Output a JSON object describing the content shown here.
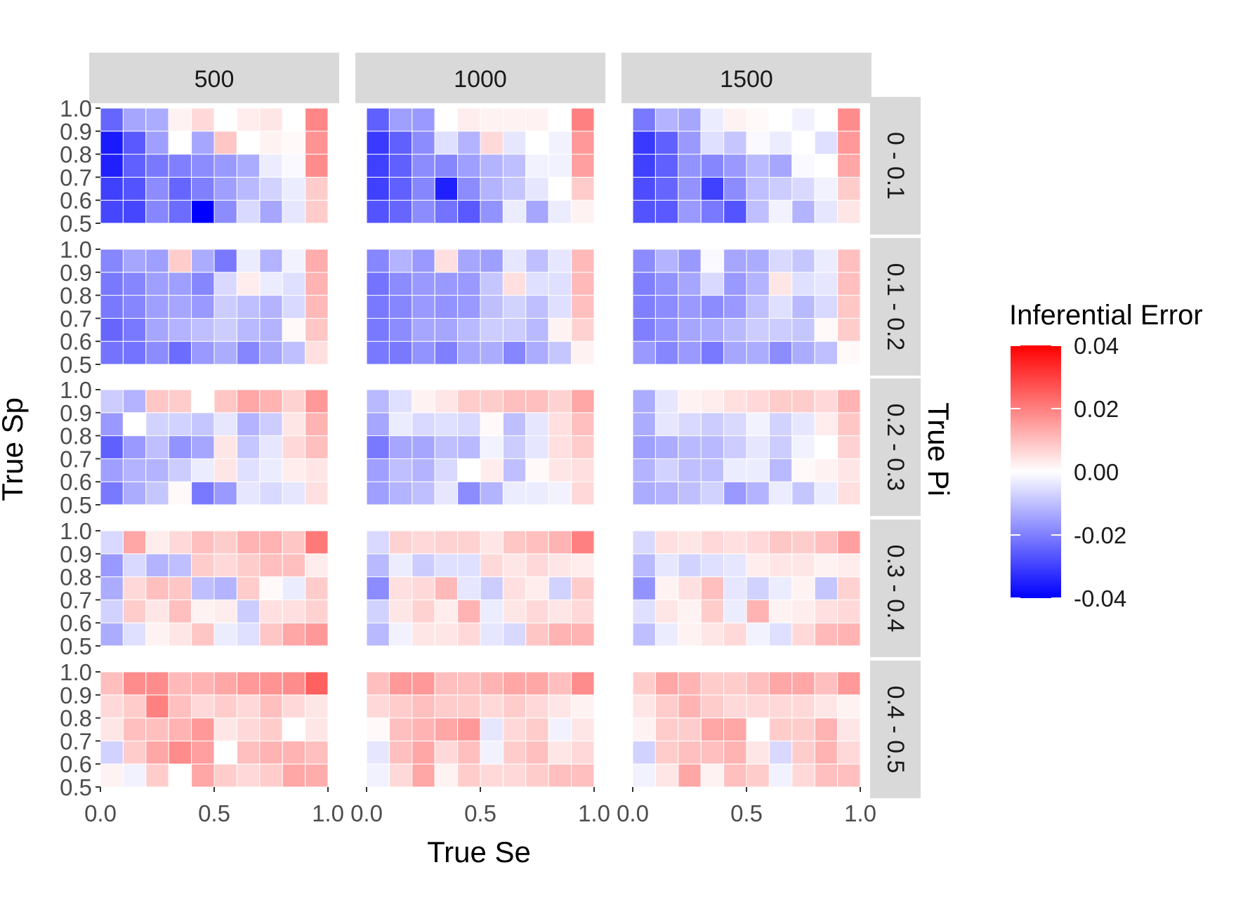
{
  "chart_data": {
    "type": "heatmap",
    "xlabel": "True Se",
    "ylabel": "True Sp",
    "facet_row_label": "True Pi",
    "col_facets": [
      "500",
      "1000",
      "1500"
    ],
    "row_facets": [
      "0 - 0.1",
      "0.1 - 0.2",
      "0.2 - 0.3",
      "0.3 - 0.4",
      "0.4 - 0.5"
    ],
    "x_ticks": [
      "0.0",
      "0.5",
      "1.0"
    ],
    "x_tick_values": [
      0.0,
      0.5,
      1.0
    ],
    "y_ticks": [
      "0.5",
      "0.6",
      "0.7",
      "0.8",
      "0.9",
      "1.0"
    ],
    "y_tick_values": [
      0.5,
      0.6,
      0.7,
      0.8,
      0.9,
      1.0
    ],
    "xlim": [
      0,
      1
    ],
    "ylim": [
      0.5,
      1.0
    ],
    "x_centers": [
      0.05,
      0.15,
      0.25,
      0.35,
      0.45,
      0.55,
      0.65,
      0.75,
      0.85,
      0.95
    ],
    "y_centers": [
      0.55,
      0.65,
      0.75,
      0.85,
      0.95
    ],
    "legend": {
      "title": "Inferential Error",
      "position": "right",
      "labels": [
        "0.04",
        "0.02",
        "0.00",
        "-0.02",
        "-0.04"
      ],
      "values": [
        0.04,
        0.02,
        0.0,
        -0.02,
        -0.04
      ],
      "low_color": "#0000ff",
      "mid_color": "#ffffff",
      "high_color": "#ff0000",
      "limits": [
        -0.04,
        0.04
      ]
    },
    "colors": {
      "strip_background": "#d9d9d9",
      "tick_text": "#4d4d4d",
      "tile_border": "#ffffff"
    },
    "panels": [
      {
        "col": "500",
        "row": "0 - 0.1",
        "z": [
          [
            -0.029,
            -0.029,
            -0.019,
            -0.023,
            -0.041,
            -0.018,
            -0.006,
            -0.014,
            -0.004,
            0.008
          ],
          [
            -0.03,
            -0.027,
            -0.018,
            -0.024,
            -0.02,
            -0.015,
            -0.011,
            -0.007,
            -0.003,
            0.008
          ],
          [
            -0.035,
            -0.025,
            -0.021,
            -0.02,
            -0.018,
            -0.016,
            -0.013,
            -0.003,
            -0.001,
            0.018
          ],
          [
            -0.036,
            -0.026,
            -0.015,
            0.0,
            -0.014,
            0.009,
            0.0,
            0.002,
            0.001,
            0.017
          ],
          [
            -0.024,
            -0.014,
            -0.013,
            0.002,
            0.006,
            0.0,
            0.003,
            0.004,
            0.0,
            0.019
          ]
        ]
      },
      {
        "col": "1000",
        "row": "0 - 0.1",
        "z": [
          [
            -0.027,
            -0.024,
            -0.018,
            -0.022,
            -0.026,
            -0.017,
            -0.003,
            -0.014,
            -0.003,
            0.002
          ],
          [
            -0.03,
            -0.025,
            -0.019,
            -0.035,
            -0.018,
            -0.012,
            -0.009,
            -0.004,
            0.0,
            0.008
          ],
          [
            -0.03,
            -0.025,
            -0.018,
            -0.019,
            -0.015,
            -0.012,
            -0.01,
            -0.002,
            -0.002,
            0.015
          ],
          [
            -0.031,
            -0.025,
            -0.018,
            -0.005,
            -0.012,
            0.006,
            -0.004,
            0.0,
            -0.002,
            0.016
          ],
          [
            -0.025,
            -0.015,
            -0.016,
            0.0,
            0.003,
            0.002,
            0.002,
            0.002,
            0.0,
            0.02
          ]
        ]
      },
      {
        "col": "1500",
        "row": "0 - 0.1",
        "z": [
          [
            -0.027,
            -0.026,
            -0.016,
            -0.021,
            -0.027,
            -0.01,
            -0.002,
            -0.012,
            -0.004,
            0.004
          ],
          [
            -0.028,
            -0.024,
            -0.017,
            -0.03,
            -0.018,
            -0.01,
            -0.008,
            -0.006,
            -0.002,
            0.008
          ],
          [
            -0.03,
            -0.025,
            -0.017,
            -0.019,
            -0.016,
            -0.011,
            -0.014,
            -0.001,
            0.0,
            0.014
          ],
          [
            -0.031,
            -0.025,
            -0.016,
            -0.005,
            -0.009,
            -0.001,
            -0.003,
            0.0,
            -0.005,
            0.016
          ],
          [
            -0.021,
            -0.012,
            -0.014,
            -0.003,
            0.002,
            0.001,
            0.0,
            -0.002,
            0.0,
            0.018
          ]
        ]
      },
      {
        "col": "500",
        "row": "0.1 - 0.2",
        "z": [
          [
            -0.022,
            -0.022,
            -0.018,
            -0.023,
            -0.016,
            -0.013,
            -0.019,
            -0.014,
            -0.01,
            0.005
          ],
          [
            -0.024,
            -0.021,
            -0.014,
            -0.012,
            -0.01,
            -0.008,
            -0.011,
            -0.012,
            0.001,
            0.009
          ],
          [
            -0.021,
            -0.019,
            -0.015,
            -0.014,
            -0.016,
            -0.008,
            -0.01,
            -0.012,
            -0.006,
            0.011
          ],
          [
            -0.021,
            -0.019,
            -0.015,
            -0.015,
            -0.019,
            -0.006,
            0.003,
            -0.003,
            -0.005,
            0.012
          ],
          [
            -0.019,
            -0.014,
            -0.015,
            0.008,
            -0.013,
            -0.021,
            -0.003,
            -0.012,
            -0.002,
            0.013
          ]
        ]
      },
      {
        "col": "1000",
        "row": "0.1 - 0.2",
        "z": [
          [
            -0.021,
            -0.021,
            -0.017,
            -0.02,
            -0.014,
            -0.013,
            -0.019,
            -0.013,
            -0.009,
            0.002
          ],
          [
            -0.021,
            -0.018,
            -0.014,
            -0.014,
            -0.011,
            -0.008,
            -0.008,
            -0.011,
            0.002,
            0.007
          ],
          [
            -0.021,
            -0.019,
            -0.016,
            -0.017,
            -0.016,
            -0.01,
            -0.007,
            -0.01,
            -0.005,
            0.01
          ],
          [
            -0.022,
            -0.018,
            -0.016,
            -0.016,
            -0.016,
            -0.009,
            0.005,
            -0.005,
            -0.005,
            0.011
          ],
          [
            -0.019,
            -0.012,
            -0.016,
            0.005,
            -0.014,
            -0.015,
            -0.004,
            -0.01,
            -0.004,
            0.011
          ]
        ]
      },
      {
        "col": "1500",
        "row": "0.1 - 0.2",
        "z": [
          [
            -0.016,
            -0.019,
            -0.016,
            -0.021,
            -0.014,
            -0.013,
            -0.018,
            -0.013,
            -0.01,
            0.001
          ],
          [
            -0.02,
            -0.017,
            -0.014,
            -0.013,
            -0.011,
            -0.008,
            -0.008,
            -0.009,
            0.001,
            0.008
          ],
          [
            -0.02,
            -0.018,
            -0.016,
            -0.018,
            -0.016,
            -0.01,
            -0.005,
            -0.011,
            -0.006,
            0.009
          ],
          [
            -0.02,
            -0.017,
            -0.014,
            -0.006,
            -0.016,
            -0.012,
            0.004,
            -0.005,
            -0.004,
            0.01
          ],
          [
            -0.018,
            -0.012,
            -0.016,
            -0.001,
            -0.014,
            -0.013,
            -0.006,
            -0.009,
            -0.003,
            0.01
          ]
        ]
      },
      {
        "col": "500",
        "row": "0.2 - 0.3",
        "z": [
          [
            -0.021,
            -0.013,
            -0.009,
            0.001,
            -0.021,
            -0.016,
            -0.004,
            -0.006,
            -0.004,
            0.005
          ],
          [
            -0.015,
            -0.012,
            -0.012,
            -0.008,
            -0.003,
            0.004,
            -0.005,
            -0.003,
            0.003,
            0.004
          ],
          [
            -0.025,
            -0.016,
            -0.01,
            -0.017,
            -0.014,
            0.004,
            -0.009,
            -0.004,
            0.006,
            0.01
          ],
          [
            -0.016,
            0.0,
            -0.007,
            -0.007,
            -0.009,
            -0.004,
            -0.012,
            -0.008,
            0.004,
            0.012
          ],
          [
            -0.008,
            -0.012,
            0.009,
            0.008,
            0.0,
            0.009,
            0.014,
            0.012,
            0.007,
            0.016
          ]
        ]
      },
      {
        "col": "1000",
        "row": "0.2 - 0.3",
        "z": [
          [
            -0.015,
            -0.012,
            -0.01,
            -0.004,
            -0.018,
            -0.012,
            -0.003,
            -0.003,
            -0.002,
            0.006
          ],
          [
            -0.015,
            -0.01,
            -0.012,
            -0.006,
            0.0,
            0.003,
            -0.01,
            0.001,
            0.004,
            0.005
          ],
          [
            -0.021,
            -0.014,
            -0.014,
            -0.01,
            -0.011,
            -0.002,
            -0.008,
            -0.004,
            0.005,
            0.008
          ],
          [
            -0.014,
            -0.003,
            -0.006,
            -0.005,
            -0.006,
            0.001,
            -0.01,
            -0.004,
            0.005,
            0.01
          ],
          [
            -0.011,
            -0.005,
            0.002,
            0.004,
            0.008,
            0.008,
            0.01,
            0.01,
            0.007,
            0.014
          ]
        ]
      },
      {
        "col": "1500",
        "row": "0.2 - 0.3",
        "z": [
          [
            -0.013,
            -0.012,
            -0.01,
            -0.007,
            -0.016,
            -0.012,
            -0.003,
            -0.009,
            -0.003,
            0.005
          ],
          [
            -0.012,
            -0.007,
            -0.01,
            -0.01,
            -0.003,
            -0.003,
            -0.011,
            0.001,
            0.002,
            0.004
          ],
          [
            -0.015,
            -0.013,
            -0.011,
            -0.011,
            -0.008,
            -0.004,
            -0.008,
            -0.002,
            0.0,
            0.007
          ],
          [
            -0.013,
            -0.004,
            -0.006,
            -0.008,
            -0.006,
            -0.002,
            -0.007,
            -0.004,
            0.003,
            0.009
          ],
          [
            -0.013,
            -0.004,
            0.002,
            0.003,
            0.005,
            0.006,
            0.008,
            0.008,
            0.006,
            0.012
          ]
        ]
      },
      {
        "col": "500",
        "row": "0.3 - 0.4",
        "z": [
          [
            -0.013,
            -0.005,
            0.002,
            0.004,
            0.009,
            -0.003,
            -0.005,
            0.009,
            0.014,
            0.016
          ],
          [
            -0.007,
            0.008,
            0.004,
            0.01,
            0.002,
            0.003,
            -0.008,
            0.005,
            0.005,
            0.007
          ],
          [
            -0.013,
            0.006,
            0.01,
            0.009,
            -0.01,
            -0.012,
            0.008,
            0.001,
            -0.003,
            0.008
          ],
          [
            -0.016,
            -0.006,
            -0.012,
            -0.01,
            0.008,
            0.006,
            0.008,
            0.01,
            0.01,
            0.003
          ],
          [
            -0.006,
            0.014,
            0.003,
            0.006,
            0.01,
            0.008,
            0.012,
            0.012,
            0.009,
            0.021
          ]
        ]
      },
      {
        "col": "1000",
        "row": "0.3 - 0.4",
        "z": [
          [
            -0.011,
            -0.002,
            0.004,
            0.004,
            0.006,
            -0.004,
            -0.006,
            0.009,
            0.012,
            0.012
          ],
          [
            -0.007,
            0.004,
            0.007,
            0.003,
            0.012,
            -0.003,
            0.004,
            0.006,
            0.004,
            0.006
          ],
          [
            -0.018,
            0.005,
            0.006,
            0.011,
            -0.004,
            -0.008,
            0.005,
            0.003,
            -0.007,
            0.008
          ],
          [
            -0.011,
            -0.003,
            -0.008,
            -0.005,
            -0.005,
            0.006,
            0.004,
            0.006,
            0.004,
            0.003
          ],
          [
            -0.006,
            0.007,
            0.006,
            0.007,
            0.007,
            0.004,
            0.009,
            0.01,
            0.012,
            0.02
          ]
        ]
      },
      {
        "col": "1500",
        "row": "0.3 - 0.4",
        "z": [
          [
            -0.01,
            -0.003,
            0.002,
            0.004,
            0.006,
            -0.002,
            -0.005,
            0.006,
            0.011,
            0.012
          ],
          [
            -0.005,
            0.004,
            0.002,
            0.008,
            -0.003,
            0.012,
            0.002,
            0.003,
            0.005,
            0.006
          ],
          [
            -0.017,
            0.002,
            0.005,
            0.01,
            -0.004,
            -0.007,
            -0.003,
            0.002,
            -0.009,
            0.007
          ],
          [
            -0.011,
            -0.004,
            -0.007,
            -0.005,
            -0.004,
            0.003,
            0.004,
            0.004,
            0.002,
            0.003
          ],
          [
            -0.006,
            0.005,
            0.004,
            0.006,
            0.005,
            0.006,
            0.009,
            0.008,
            0.01,
            0.015
          ]
        ]
      },
      {
        "col": "500",
        "row": "0.4 - 0.5",
        "z": [
          [
            0.002,
            -0.002,
            0.008,
            0.0,
            0.014,
            0.008,
            0.006,
            0.008,
            0.014,
            0.013
          ],
          [
            -0.007,
            0.008,
            0.014,
            0.018,
            0.015,
            0.0,
            0.01,
            0.012,
            0.012,
            0.01
          ],
          [
            0.004,
            0.01,
            0.01,
            0.012,
            0.016,
            0.004,
            0.006,
            0.008,
            0.0,
            0.004
          ],
          [
            0.006,
            0.008,
            0.02,
            0.01,
            0.006,
            0.008,
            0.006,
            0.01,
            0.006,
            0.004
          ],
          [
            0.01,
            0.018,
            0.018,
            0.011,
            0.012,
            0.014,
            0.016,
            0.017,
            0.018,
            0.025
          ]
        ]
      },
      {
        "col": "1000",
        "row": "0.4 - 0.5",
        "z": [
          [
            -0.002,
            0.006,
            0.014,
            0.002,
            0.008,
            0.006,
            0.006,
            0.008,
            0.01,
            0.01
          ],
          [
            -0.004,
            0.01,
            0.014,
            0.006,
            0.01,
            -0.002,
            0.008,
            0.01,
            0.004,
            0.006
          ],
          [
            0.001,
            0.01,
            0.012,
            0.014,
            0.016,
            -0.004,
            0.006,
            0.008,
            -0.002,
            0.004
          ],
          [
            0.006,
            0.008,
            0.01,
            0.008,
            0.008,
            0.006,
            0.008,
            0.006,
            0.004,
            0.002
          ],
          [
            0.01,
            0.016,
            0.016,
            0.01,
            0.01,
            0.012,
            0.014,
            0.014,
            0.01,
            0.018
          ]
        ]
      },
      {
        "col": "1500",
        "row": "0.4 - 0.5",
        "z": [
          [
            -0.002,
            0.004,
            0.014,
            0.002,
            0.01,
            0.008,
            -0.002,
            0.006,
            0.01,
            0.01
          ],
          [
            -0.007,
            0.008,
            0.01,
            0.01,
            0.012,
            0.004,
            -0.006,
            0.008,
            0.012,
            0.006
          ],
          [
            0.002,
            0.008,
            0.008,
            0.014,
            0.014,
            0.0,
            0.008,
            0.008,
            0.012,
            0.004
          ],
          [
            0.004,
            0.008,
            0.012,
            0.008,
            0.006,
            0.006,
            0.006,
            0.006,
            0.004,
            0.002
          ],
          [
            0.008,
            0.014,
            0.012,
            0.008,
            0.008,
            0.01,
            0.014,
            0.014,
            0.01,
            0.016
          ]
        ]
      }
    ]
  }
}
